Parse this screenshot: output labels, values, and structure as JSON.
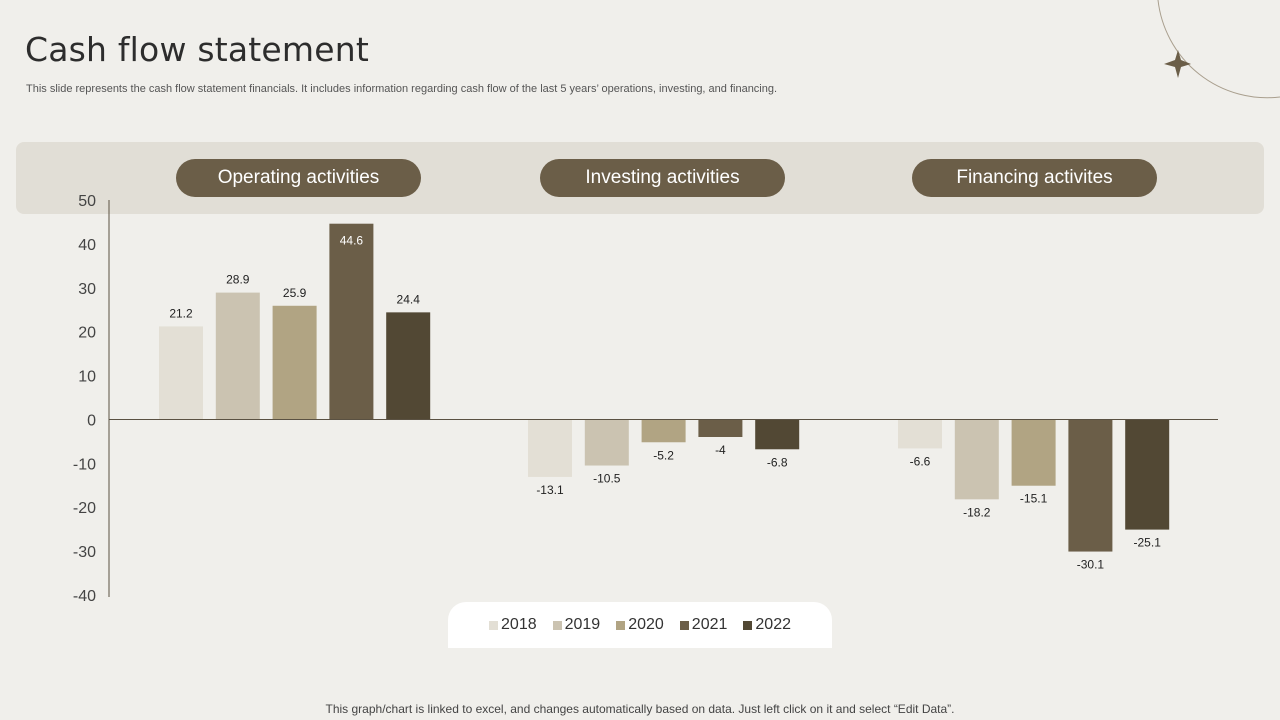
{
  "header": {
    "title": "Cash flow statement",
    "subtitle": "This slide represents the cash flow statement financials. It includes information regarding cash flow of the last 5 years’ operations, investing, and financing."
  },
  "groups": [
    "Operating activities",
    "Investing activities",
    "Financing activites"
  ],
  "chart_data": {
    "type": "bar",
    "categories": [
      "Operating activities",
      "Investing activities",
      "Financing activites"
    ],
    "series": [
      {
        "name": "2018",
        "values": [
          21.2,
          -13.1,
          -6.6
        ],
        "color": "#e3dfd5"
      },
      {
        "name": "2019",
        "values": [
          28.9,
          -10.5,
          -18.2
        ],
        "color": "#cbc3b1"
      },
      {
        "name": "2020",
        "values": [
          25.9,
          -5.2,
          -15.1
        ],
        "color": "#b1a483"
      },
      {
        "name": "2021",
        "values": [
          44.6,
          -4,
          -30.1
        ],
        "color": "#6b5e48"
      },
      {
        "name": "2022",
        "values": [
          24.4,
          -6.8,
          -25.1
        ],
        "color": "#524834"
      }
    ],
    "ylim": [
      -40,
      50
    ],
    "yticks": [
      50,
      40,
      30,
      20,
      10,
      0,
      -10,
      -20,
      -30,
      -40
    ],
    "legend_position": "bottom"
  },
  "footer": {
    "note": "This graph/chart is linked to excel,  and changes automatically based on data. Just left click on it and select “Edit Data”."
  }
}
